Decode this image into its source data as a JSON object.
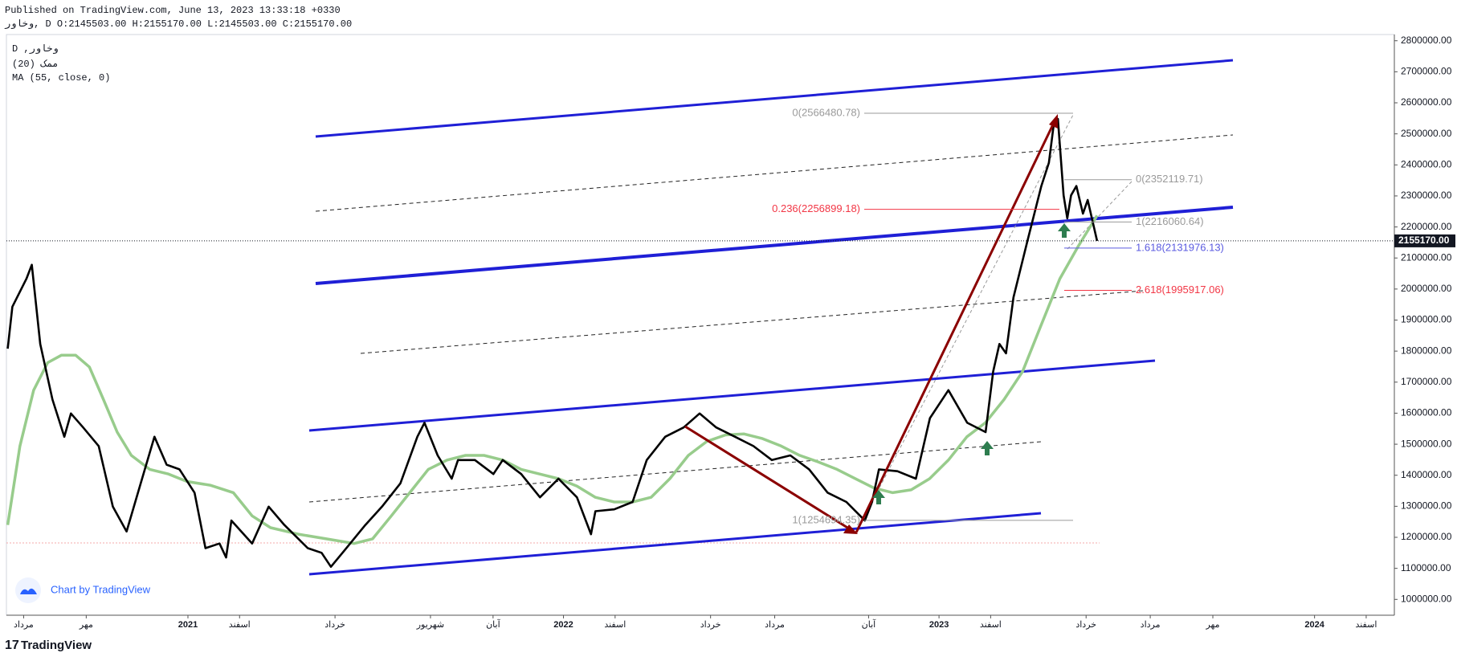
{
  "header": {
    "published": "Published on TradingView.com, June 13, 2023 13:33:18 +0330",
    "ohlc": "وخاور, D O:2145503.00 H:2155170.00 L:2145503.00 C:2155170.00"
  },
  "watermark": "Chart by TradingView",
  "brand": "TradingView",
  "chart_data": {
    "type": "line",
    "indicators": [
      "(20) ممک"
    ],
    "xlim": [
      6.2,
      50.55
    ],
    "ylim": [
      949000,
      2820000
    ],
    "grid": false,
    "xticks": [
      {
        "value": 6.75,
        "label": "مرداد"
      },
      {
        "value": 8.75,
        "label": "مهر"
      },
      {
        "value": 12,
        "label": "2021"
      },
      {
        "value": 13.65,
        "label": "اسفند"
      },
      {
        "value": 16.7,
        "label": "خرداد"
      },
      {
        "value": 19.75,
        "label": "شهریور"
      },
      {
        "value": 21.75,
        "label": "آبان"
      },
      {
        "value": 24,
        "label": "2022"
      },
      {
        "value": 25.65,
        "label": "اسفند"
      },
      {
        "value": 28.7,
        "label": "خرداد"
      },
      {
        "value": 30.75,
        "label": "مرداد"
      },
      {
        "value": 33.75,
        "label": "آبان"
      },
      {
        "value": 36,
        "label": "2023"
      },
      {
        "value": 37.65,
        "label": "اسفند"
      },
      {
        "value": 40.7,
        "label": "خرداد"
      },
      {
        "value": 42.75,
        "label": "مرداد"
      },
      {
        "value": 44.75,
        "label": "مهر"
      },
      {
        "value": 48,
        "label": "2024"
      },
      {
        "value": 49.65,
        "label": "اسفند"
      }
    ],
    "yticks": [
      {
        "value": 1000000,
        "label": "1000000.00"
      },
      {
        "value": 1100000,
        "label": "1100000.00"
      },
      {
        "value": 1200000,
        "label": "1200000.00"
      },
      {
        "value": 1300000,
        "label": "1300000.00"
      },
      {
        "value": 1400000,
        "label": "1400000.00"
      },
      {
        "value": 1500000,
        "label": "1500000.00"
      },
      {
        "value": 1600000,
        "label": "1600000.00"
      },
      {
        "value": 1700000,
        "label": "1700000.00"
      },
      {
        "value": 1800000,
        "label": "1800000.00"
      },
      {
        "value": 1900000,
        "label": "1900000.00"
      },
      {
        "value": 2000000,
        "label": "2000000.00"
      },
      {
        "value": 2100000,
        "label": "2100000.00"
      },
      {
        "value": 2200000,
        "label": "2200000.00"
      },
      {
        "value": 2300000,
        "label": "2300000.00"
      },
      {
        "value": 2400000,
        "label": "2400000.00"
      },
      {
        "value": 2500000,
        "label": "2500000.00"
      },
      {
        "value": 2600000,
        "label": "2600000.00"
      },
      {
        "value": 2700000,
        "label": "2700000.00"
      },
      {
        "value": 2800000,
        "label": "2800000.00"
      }
    ],
    "series": [
      {
        "name": "D ,وخاور",
        "color": "#000000",
        "x": [
          6.24,
          6.39,
          6.84,
          7.01,
          7.28,
          7.67,
          8.05,
          8.26,
          8.65,
          9.15,
          9.6,
          10.04,
          10.49,
          10.93,
          11.32,
          11.73,
          12.21,
          12.56,
          13.01,
          13.22,
          13.39,
          14.05,
          14.58,
          15.08,
          15.83,
          16.27,
          16.57,
          17.01,
          17.67,
          18.2,
          18.79,
          19.33,
          19.56,
          19.98,
          20.43,
          20.63,
          21.17,
          21.76,
          22.06,
          22.65,
          23.25,
          23.84,
          24.43,
          24.88,
          25.02,
          25.62,
          26.21,
          26.66,
          27.25,
          27.84,
          28.35,
          28.88,
          29.48,
          30.07,
          30.66,
          31.25,
          31.85,
          32.44,
          33.04,
          33.63,
          33.86,
          34.08,
          34.67,
          35.26,
          35.71,
          36.3,
          36.9,
          37.49,
          37.73,
          37.93,
          38.14,
          38.38,
          38.82,
          39.27,
          39.51,
          39.68,
          39.8,
          39.98,
          40.1,
          40.22,
          40.39,
          40.6,
          40.75,
          41.05
        ],
        "values": [
          1808000,
          1943000,
          2033000,
          2078000,
          1823000,
          1644000,
          1524000,
          1599000,
          1554000,
          1494000,
          1299000,
          1219000,
          1374000,
          1524000,
          1434000,
          1419000,
          1344000,
          1165000,
          1180000,
          1135000,
          1254000,
          1180000,
          1299000,
          1240000,
          1165000,
          1150000,
          1105000,
          1159000,
          1240000,
          1299000,
          1374000,
          1524000,
          1569000,
          1464000,
          1389000,
          1449000,
          1449000,
          1404000,
          1449000,
          1404000,
          1329000,
          1389000,
          1329000,
          1210000,
          1284000,
          1290000,
          1314000,
          1449000,
          1524000,
          1554000,
          1599000,
          1554000,
          1524000,
          1494000,
          1449000,
          1464000,
          1419000,
          1344000,
          1314000,
          1254000,
          1314000,
          1419000,
          1413000,
          1389000,
          1584000,
          1674000,
          1569000,
          1539000,
          1734000,
          1823000,
          1793000,
          1973000,
          2153000,
          2332000,
          2407000,
          2542000,
          2548000,
          2302000,
          2228000,
          2302000,
          2332000,
          2243000,
          2287000,
          2155170
        ]
      },
      {
        "name": "MA (55, close, 0)",
        "color": "#98cc8c",
        "x": [
          6.24,
          6.63,
          7.07,
          7.52,
          7.96,
          8.41,
          8.85,
          9.3,
          9.74,
          10.19,
          10.78,
          11.38,
          11.97,
          12.71,
          13.45,
          14.05,
          14.64,
          15.53,
          16.42,
          17.31,
          17.9,
          18.5,
          19.09,
          19.68,
          20.28,
          20.87,
          21.46,
          22.06,
          22.65,
          23.24,
          23.84,
          24.43,
          25.02,
          25.62,
          26.21,
          26.8,
          27.4,
          27.99,
          28.58,
          29.18,
          29.77,
          30.36,
          30.96,
          31.55,
          32.14,
          32.74,
          33.33,
          33.92,
          34.52,
          35.11,
          35.7,
          36.3,
          36.89,
          37.48,
          38.08,
          38.67,
          39.26,
          39.86,
          40.45,
          41.05
        ],
        "values": [
          1240000,
          1494000,
          1674000,
          1763000,
          1787000,
          1787000,
          1749000,
          1644000,
          1539000,
          1464000,
          1419000,
          1404000,
          1380000,
          1368000,
          1344000,
          1269000,
          1231000,
          1210000,
          1195000,
          1180000,
          1195000,
          1269000,
          1344000,
          1419000,
          1449000,
          1464000,
          1464000,
          1449000,
          1419000,
          1404000,
          1389000,
          1365000,
          1329000,
          1314000,
          1314000,
          1329000,
          1389000,
          1464000,
          1509000,
          1530000,
          1533000,
          1518000,
          1494000,
          1464000,
          1443000,
          1419000,
          1389000,
          1359000,
          1344000,
          1353000,
          1389000,
          1449000,
          1524000,
          1569000,
          1644000,
          1734000,
          1883000,
          2033000,
          2138000,
          2237000
        ]
      }
    ],
    "last_price": {
      "value": 2155170,
      "label": "2155170.00"
    },
    "annotations": [
      {
        "label": "0(2566480.78)",
        "value": 2566480.78,
        "color": "#9a9a9a"
      },
      {
        "label": "0.236(2256899.18)",
        "value": 2256899.18,
        "color": "#f23645"
      },
      {
        "label": "0(2352119.71)",
        "value": 2352119.71,
        "color": "#9a9a9a"
      },
      {
        "label": "1(2216060.64)",
        "value": 2216060.64,
        "color": "#9a9a9a"
      },
      {
        "label": "1.618(2131976.13)",
        "value": 2131976.13,
        "color": "#5b5be0"
      },
      {
        "label": "2.618(1995917.06)",
        "value": 1995917.06,
        "color": "#f23645"
      },
      {
        "label": "1(1254694.35)",
        "value": 1254694.35,
        "color": "#9a9a9a"
      }
    ]
  }
}
